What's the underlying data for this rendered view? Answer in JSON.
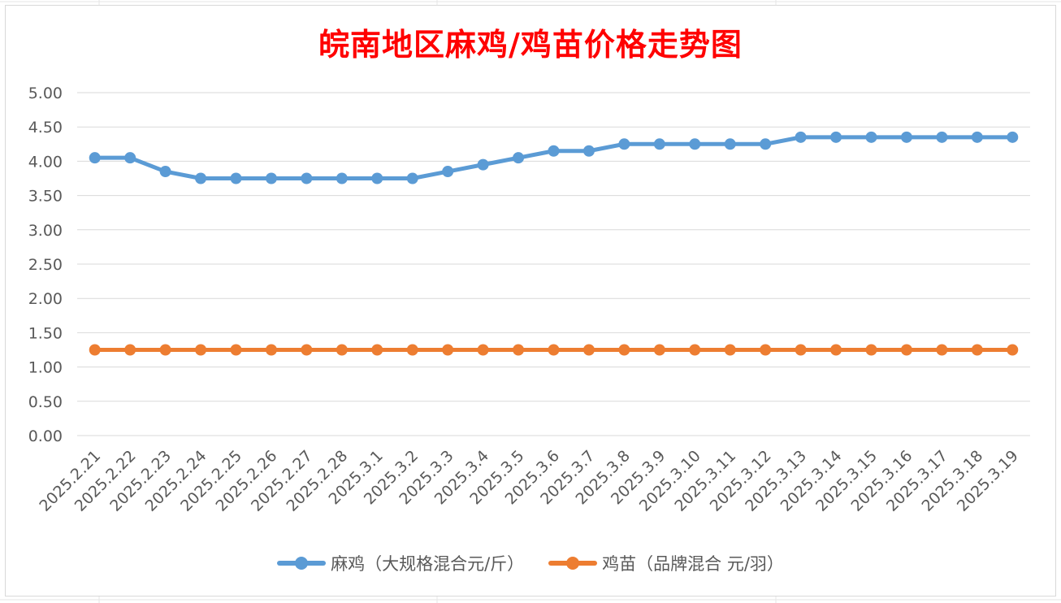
{
  "chart_data": {
    "type": "line",
    "title": "皖南地区麻鸡/鸡苗价格走势图",
    "categories": [
      "2025.2.21",
      "2025.2.22",
      "2025.2.23",
      "2025.2.24",
      "2025.2.25",
      "2025.2.26",
      "2025.2.27",
      "2025.2.28",
      "2025.3.1",
      "2025.3.2",
      "2025.3.3",
      "2025.3.4",
      "2025.3.5",
      "2025.3.6",
      "2025.3.7",
      "2025.3.8",
      "2025.3.9",
      "2025.3.10",
      "2025.3.11",
      "2025.3.12",
      "2025.3.13",
      "2025.3.14",
      "2025.3.15",
      "2025.3.16",
      "2025.3.17",
      "2025.3.18",
      "2025.3.19"
    ],
    "y_ticks": [
      "0.00",
      "0.50",
      "1.00",
      "1.50",
      "2.00",
      "2.50",
      "3.00",
      "3.50",
      "4.00",
      "4.50",
      "5.00"
    ],
    "ylim": [
      0,
      5
    ],
    "grid": true,
    "legend_position": "bottom",
    "series": [
      {
        "name": "麻鸡（大规格混合元/斤）",
        "color": "#5b9bd5",
        "values": [
          4.05,
          4.05,
          3.85,
          3.75,
          3.75,
          3.75,
          3.75,
          3.75,
          3.75,
          3.75,
          3.85,
          3.95,
          4.05,
          4.15,
          4.15,
          4.25,
          4.25,
          4.25,
          4.25,
          4.25,
          4.35,
          4.35,
          4.35,
          4.35,
          4.35,
          4.35,
          4.35
        ]
      },
      {
        "name": "鸡苗（品牌混合 元/羽）",
        "color": "#ed7d31",
        "values": [
          1.25,
          1.25,
          1.25,
          1.25,
          1.25,
          1.25,
          1.25,
          1.25,
          1.25,
          1.25,
          1.25,
          1.25,
          1.25,
          1.25,
          1.25,
          1.25,
          1.25,
          1.25,
          1.25,
          1.25,
          1.25,
          1.25,
          1.25,
          1.25,
          1.25,
          1.25,
          1.25
        ]
      }
    ]
  }
}
